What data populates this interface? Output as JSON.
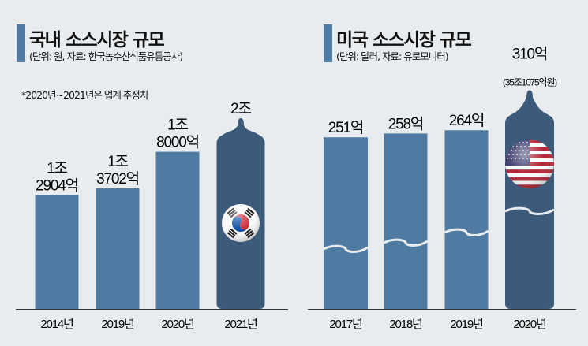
{
  "colors": {
    "bar": "#4f7aa2",
    "bottle": "#3c5a79",
    "background": "#e9ecee",
    "axis": "#333333"
  },
  "chart_data": [
    {
      "type": "bar",
      "title": "국내 소스시장 규모",
      "subtitle": "(단위: 원,  자료: 한국농수산식품유통공사)",
      "note": "*2020년~2021년은 업계 추정치",
      "categories": [
        "2014년",
        "2019년",
        "2020년",
        "2021년"
      ],
      "values": [
        12904,
        13702,
        18000,
        20000
      ],
      "unit": "억원",
      "value_labels": [
        [
          "1조",
          "2904억"
        ],
        [
          "1조",
          "3702억"
        ],
        [
          "1조",
          "8000억"
        ],
        [
          "2조"
        ]
      ],
      "highlight_last": true,
      "last_bar_icon": "korea-flag-icon"
    },
    {
      "type": "bar",
      "title": "미국 소스시장 규모",
      "subtitle": "(단위: 달러,  자료: 유로모니터)",
      "categories": [
        "2017년",
        "2018년",
        "2019년",
        "2020년"
      ],
      "values": [
        251,
        258,
        264,
        310
      ],
      "unit": "억 달러",
      "value_labels": [
        [
          "251억"
        ],
        [
          "258억"
        ],
        [
          "264억"
        ],
        [
          "310억",
          "(35조1075억원)"
        ]
      ],
      "axis_break": true,
      "highlight_last": true,
      "last_bar_icon": "usa-flag-icon"
    }
  ]
}
